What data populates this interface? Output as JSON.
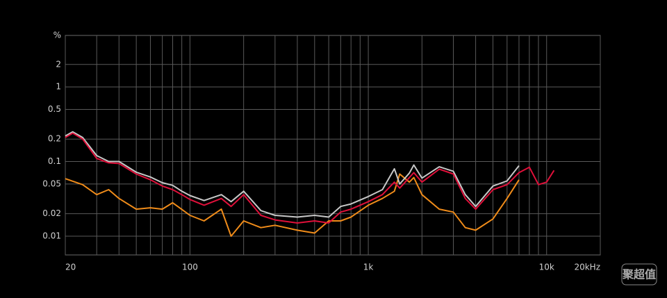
{
  "chart_data": {
    "type": "line",
    "y_label": "%",
    "xlog": true,
    "ylog": true,
    "grid": true,
    "xlim": [
      20,
      20000
    ],
    "ylim": [
      0.0056,
      4.9
    ],
    "xticks": [
      20,
      100,
      {
        "value": 1000,
        "label": "1k"
      },
      {
        "value": 10000,
        "label": "10k"
      },
      {
        "value": 20000,
        "label": "20kHz"
      }
    ],
    "xgrid": [
      20,
      30,
      40,
      50,
      60,
      70,
      80,
      90,
      100,
      200,
      300,
      400,
      500,
      600,
      700,
      800,
      900,
      1000,
      2000,
      3000,
      4000,
      5000,
      6000,
      7000,
      8000,
      9000,
      10000,
      20000
    ],
    "yticks": [
      0.01,
      0.02,
      0.05,
      0.1,
      0.2,
      0.5,
      1,
      2
    ],
    "series": [
      {
        "color": "#c8c8c8",
        "x": [
          20,
          22,
          25,
          30,
          35,
          40,
          50,
          60,
          70,
          80,
          90,
          100,
          120,
          150,
          170,
          200,
          250,
          300,
          400,
          500,
          600,
          700,
          800,
          1000,
          1200,
          1400,
          1500,
          1700,
          1800,
          2000,
          2500,
          3000,
          3500,
          4000,
          5000,
          6000,
          7000
        ],
        "values": [
          0.22,
          0.25,
          0.21,
          0.12,
          0.1,
          0.1,
          0.072,
          0.062,
          0.052,
          0.048,
          0.04,
          0.035,
          0.03,
          0.036,
          0.029,
          0.04,
          0.022,
          0.019,
          0.018,
          0.019,
          0.018,
          0.025,
          0.027,
          0.034,
          0.042,
          0.08,
          0.05,
          0.07,
          0.09,
          0.06,
          0.085,
          0.074,
          0.036,
          0.025,
          0.047,
          0.055,
          0.088
        ]
      },
      {
        "color": "#e0103a",
        "x": [
          20,
          22,
          25,
          30,
          35,
          40,
          50,
          60,
          70,
          80,
          90,
          100,
          120,
          150,
          170,
          200,
          250,
          300,
          400,
          500,
          600,
          700,
          800,
          1000,
          1200,
          1400,
          1500,
          1700,
          1800,
          2000,
          2500,
          3000,
          3500,
          4000,
          5000,
          6000,
          7000,
          8000,
          9000,
          10000,
          11000
        ],
        "values": [
          0.21,
          0.24,
          0.2,
          0.11,
          0.096,
          0.094,
          0.068,
          0.057,
          0.047,
          0.042,
          0.036,
          0.031,
          0.026,
          0.032,
          0.025,
          0.036,
          0.019,
          0.0165,
          0.015,
          0.016,
          0.015,
          0.021,
          0.023,
          0.029,
          0.036,
          0.053,
          0.044,
          0.061,
          0.071,
          0.053,
          0.079,
          0.068,
          0.032,
          0.023,
          0.042,
          0.049,
          0.071,
          0.084,
          0.049,
          0.053,
          0.076
        ]
      },
      {
        "color": "#f08c1a",
        "x": [
          20,
          25,
          30,
          35,
          40,
          50,
          60,
          70,
          80,
          100,
          120,
          150,
          170,
          200,
          250,
          300,
          400,
          500,
          600,
          700,
          800,
          1000,
          1200,
          1400,
          1500,
          1700,
          1800,
          2000,
          2500,
          3000,
          3500,
          4000,
          5000,
          6000,
          7000
        ],
        "values": [
          0.059,
          0.049,
          0.036,
          0.042,
          0.032,
          0.023,
          0.024,
          0.023,
          0.028,
          0.019,
          0.016,
          0.023,
          0.01,
          0.016,
          0.013,
          0.014,
          0.012,
          0.011,
          0.016,
          0.016,
          0.018,
          0.026,
          0.032,
          0.04,
          0.068,
          0.053,
          0.061,
          0.036,
          0.023,
          0.021,
          0.013,
          0.012,
          0.017,
          0.032,
          0.057
        ]
      }
    ]
  },
  "watermark": "聚超值"
}
